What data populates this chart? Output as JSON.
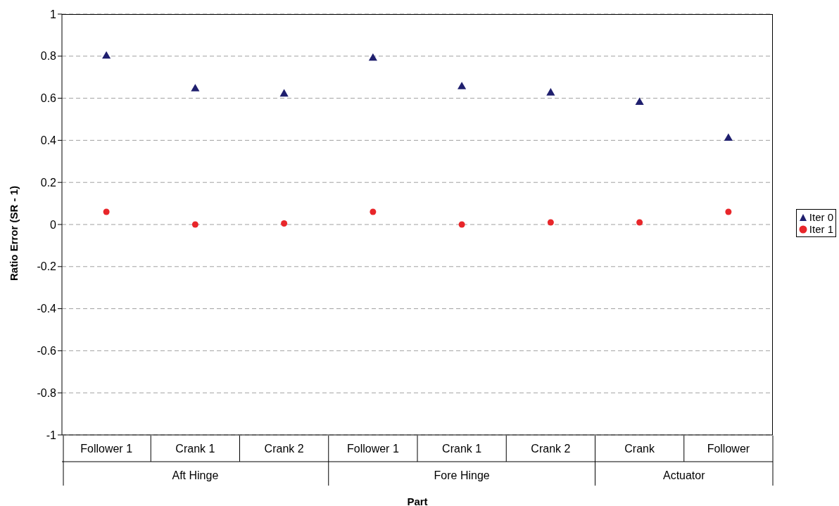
{
  "chart_data": {
    "type": "scatter",
    "xlabel": "Part",
    "ylabel": "Ratio Error (SR - 1)",
    "categories": [
      "Follower 1",
      "Crank 1",
      "Crank 2",
      "Follower 1",
      "Crank 1",
      "Crank 2",
      "Crank",
      "Follower"
    ],
    "annotations": [
      "Aft Hinge",
      "Fore Hinge",
      "Actuator"
    ],
    "series": [
      {
        "name": "Iter 0",
        "color": "#1f1f6e",
        "marker": "triangle",
        "values": [
          0.8,
          0.645,
          0.62,
          0.79,
          0.655,
          0.625,
          0.58,
          0.41
        ]
      },
      {
        "name": "Iter 1",
        "color": "#e8262a",
        "marker": "circle",
        "values": [
          0.06,
          0,
          0.005,
          0.06,
          0,
          0.01,
          0.01,
          0.06
        ]
      }
    ],
    "ylim": [
      -1,
      1
    ],
    "yticks": [
      -1,
      -0.8,
      -0.6,
      -0.4,
      -0.2,
      0,
      0.2,
      0.4,
      0.6,
      0.8,
      1
    ],
    "grid": "y",
    "legend": "right"
  }
}
